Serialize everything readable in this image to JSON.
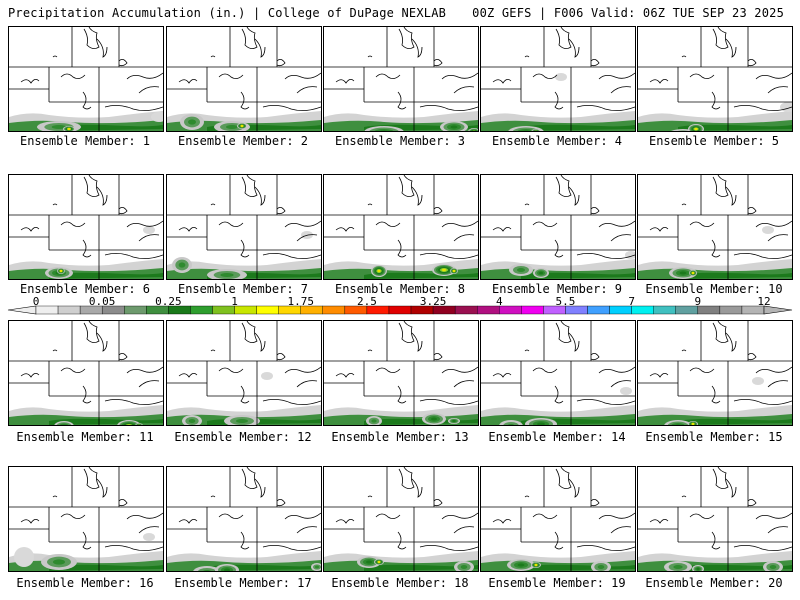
{
  "header": {
    "left_title": "Precipitation Accumulation (in.) | College of DuPage NEXLAB",
    "right_title": "00Z GEFS | F006 Valid: 06Z TUE SEP 23 2025"
  },
  "caption_prefix": "Ensemble Member:",
  "members": [
    {
      "num": "1",
      "blobs": [
        [
          50,
          100,
          22,
          6,
          1
        ],
        [
          60,
          102,
          6,
          3,
          3
        ],
        [
          150,
          90,
          8,
          5,
          0
        ]
      ]
    },
    {
      "num": "2",
      "blobs": [
        [
          25,
          95,
          12,
          8,
          1
        ],
        [
          65,
          100,
          18,
          6,
          1
        ],
        [
          75,
          99,
          5,
          3,
          3
        ]
      ]
    },
    {
      "num": "3",
      "blobs": [
        [
          60,
          105,
          20,
          6,
          2
        ],
        [
          130,
          100,
          14,
          6,
          2
        ],
        [
          150,
          105,
          6,
          4,
          3
        ]
      ]
    },
    {
      "num": "4",
      "blobs": [
        [
          45,
          105,
          18,
          6,
          2
        ],
        [
          55,
          105,
          5,
          3,
          3
        ],
        [
          80,
          50,
          6,
          4,
          0
        ]
      ]
    },
    {
      "num": "5",
      "blobs": [
        [
          45,
          108,
          16,
          6,
          2
        ],
        [
          58,
          102,
          8,
          5,
          3
        ],
        [
          150,
          80,
          8,
          5,
          0
        ]
      ]
    },
    {
      "num": "6",
      "blobs": [
        [
          50,
          98,
          14,
          6,
          2
        ],
        [
          52,
          96,
          4,
          3,
          3
        ],
        [
          140,
          55,
          6,
          4,
          0
        ]
      ]
    },
    {
      "num": "7",
      "blobs": [
        [
          15,
          90,
          10,
          8,
          1
        ],
        [
          60,
          100,
          20,
          6,
          1
        ],
        [
          140,
          60,
          6,
          4,
          0
        ]
      ]
    },
    {
      "num": "8",
      "blobs": [
        [
          55,
          96,
          8,
          6,
          3
        ],
        [
          120,
          95,
          12,
          6,
          3
        ],
        [
          130,
          96,
          4,
          3,
          3
        ]
      ]
    },
    {
      "num": "9",
      "blobs": [
        [
          40,
          95,
          12,
          6,
          1
        ],
        [
          60,
          98,
          8,
          5,
          2
        ],
        [
          150,
          80,
          6,
          4,
          0
        ]
      ]
    },
    {
      "num": "10",
      "blobs": [
        [
          45,
          98,
          14,
          6,
          2
        ],
        [
          55,
          98,
          4,
          3,
          3
        ],
        [
          130,
          55,
          6,
          4,
          0
        ]
      ]
    },
    {
      "num": "11",
      "blobs": [
        [
          55,
          105,
          10,
          5,
          2
        ],
        [
          120,
          105,
          12,
          6,
          3
        ],
        [
          130,
          105,
          4,
          3,
          3
        ]
      ]
    },
    {
      "num": "12",
      "blobs": [
        [
          25,
          100,
          10,
          6,
          1
        ],
        [
          75,
          100,
          18,
          6,
          1
        ],
        [
          100,
          55,
          6,
          4,
          0
        ]
      ]
    },
    {
      "num": "13",
      "blobs": [
        [
          50,
          100,
          8,
          5,
          1
        ],
        [
          110,
          98,
          12,
          6,
          2
        ],
        [
          130,
          100,
          6,
          3,
          2
        ]
      ]
    },
    {
      "num": "14",
      "blobs": [
        [
          30,
          105,
          12,
          6,
          1
        ],
        [
          60,
          103,
          16,
          6,
          2
        ],
        [
          145,
          70,
          6,
          4,
          0
        ]
      ]
    },
    {
      "num": "15",
      "blobs": [
        [
          40,
          105,
          14,
          6,
          2
        ],
        [
          55,
          103,
          5,
          3,
          3
        ],
        [
          120,
          60,
          6,
          4,
          0
        ]
      ]
    },
    {
      "num": "16",
      "blobs": [
        [
          15,
          90,
          10,
          10,
          0
        ],
        [
          50,
          95,
          18,
          8,
          1
        ],
        [
          140,
          70,
          6,
          4,
          0
        ]
      ]
    },
    {
      "num": "17",
      "blobs": [
        [
          40,
          105,
          14,
          6,
          1
        ],
        [
          60,
          103,
          12,
          6,
          2
        ],
        [
          150,
          100,
          6,
          4,
          1
        ]
      ]
    },
    {
      "num": "18",
      "blobs": [
        [
          45,
          95,
          12,
          6,
          2
        ],
        [
          55,
          95,
          5,
          3,
          3
        ],
        [
          140,
          100,
          10,
          6,
          1
        ]
      ]
    },
    {
      "num": "19",
      "blobs": [
        [
          40,
          98,
          14,
          6,
          2
        ],
        [
          55,
          98,
          5,
          3,
          3
        ],
        [
          120,
          100,
          10,
          6,
          1
        ]
      ]
    },
    {
      "num": "20",
      "blobs": [
        [
          40,
          100,
          14,
          6,
          1
        ],
        [
          60,
          102,
          6,
          4,
          2
        ],
        [
          135,
          100,
          10,
          6,
          1
        ]
      ]
    }
  ],
  "legend": {
    "labels": [
      "0",
      "0.05",
      "0.25",
      "1",
      "1.75",
      "2.5",
      "3.25",
      "4",
      "5.5",
      "7",
      "9",
      "12"
    ],
    "colors": [
      "#eeeeee",
      "#cfcfcf",
      "#a9a9a9",
      "#8c8c8c",
      "#6d9a6d",
      "#3f8f3f",
      "#1a7a1a",
      "#2e9e2e",
      "#7fc11f",
      "#c8e600",
      "#ffff00",
      "#ffd700",
      "#ffb000",
      "#ff8c00",
      "#ff5a00",
      "#ff1a00",
      "#e00000",
      "#b00000",
      "#900020",
      "#9a1050",
      "#b01080",
      "#d010c0",
      "#f000f0",
      "#c060ff",
      "#8080ff",
      "#40a0ff",
      "#00d0ff",
      "#00f0f0",
      "#40c0c0",
      "#60a0a0",
      "#808080",
      "#9a9a9a",
      "#b4b4b4"
    ]
  }
}
